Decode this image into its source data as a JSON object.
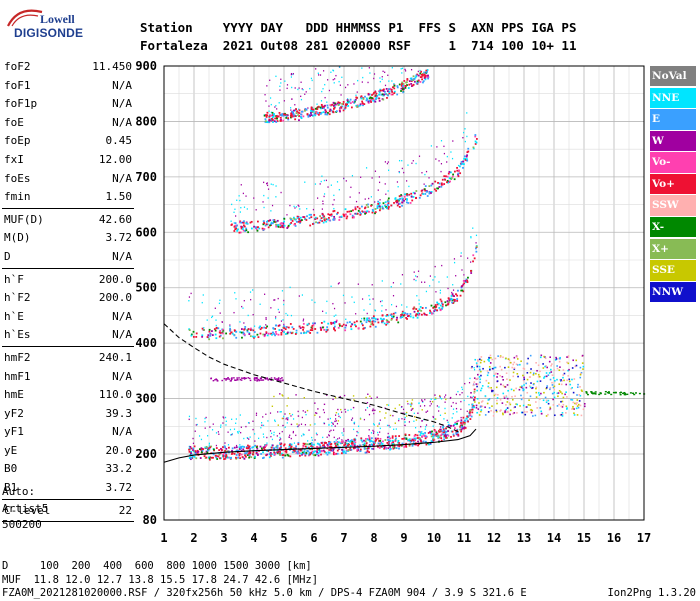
{
  "logo": {
    "line1": "Lowell",
    "line2": "DIGISONDE"
  },
  "header": {
    "line1": "Station    YYYY DAY   DDD HHMMSS P1  FFS S  AXN PPS IGA PS",
    "line2": "Fortaleza  2021 Out08 281 020000 RSF     1  714 100 10+ 11"
  },
  "params": {
    "group1": [
      {
        "k": "foF2",
        "v": "11.450"
      },
      {
        "k": "foF1",
        "v": "N/A"
      },
      {
        "k": "foF1p",
        "v": "N/A"
      },
      {
        "k": "foE",
        "v": "N/A"
      },
      {
        "k": "foEp",
        "v": "0.45"
      },
      {
        "k": "fxI",
        "v": "12.00"
      },
      {
        "k": "foEs",
        "v": "N/A"
      },
      {
        "k": "fmin",
        "v": "1.50"
      }
    ],
    "group2": [
      {
        "k": "MUF(D)",
        "v": "42.60"
      },
      {
        "k": "M(D)",
        "v": "3.72"
      },
      {
        "k": "D",
        "v": "N/A"
      }
    ],
    "group3": [
      {
        "k": "h`F",
        "v": "200.0"
      },
      {
        "k": "h`F2",
        "v": "200.0"
      },
      {
        "k": "h`E",
        "v": "N/A"
      },
      {
        "k": "h`Es",
        "v": "N/A"
      }
    ],
    "group4": [
      {
        "k": "hmF2",
        "v": "240.1"
      },
      {
        "k": "hmF1",
        "v": "N/A"
      },
      {
        "k": "hmE",
        "v": "110.0"
      },
      {
        "k": "yF2",
        "v": "39.3"
      },
      {
        "k": "yF1",
        "v": "N/A"
      },
      {
        "k": "yE",
        "v": "20.0"
      },
      {
        "k": "B0",
        "v": "33.2"
      },
      {
        "k": "B1",
        "v": "3.72"
      }
    ],
    "group5": [
      {
        "k": "C-level",
        "v": "22"
      }
    ]
  },
  "auto": {
    "line1": "Auto:",
    "line2": "Artist5",
    "line3": "500200"
  },
  "legend": [
    {
      "label": "NoVal",
      "color": "#808080"
    },
    {
      "label": "NNE",
      "color": "#00e5ff"
    },
    {
      "label": "E",
      "color": "#3aa0ff"
    },
    {
      "label": "W",
      "color": "#a000a0"
    },
    {
      "label": "Vo-",
      "color": "#ff40b0"
    },
    {
      "label": "Vo+",
      "color": "#ee1133"
    },
    {
      "label": "SSW",
      "color": "#ffb0b0"
    },
    {
      "label": "X-",
      "color": "#008800"
    },
    {
      "label": "X+",
      "color": "#88bb55"
    },
    {
      "label": "SSE",
      "color": "#c8c800"
    },
    {
      "label": "NNW",
      "color": "#1010cc"
    }
  ],
  "bottom": {
    "dist_line": "D     100  200  400  600  800 1000 1500 3000 [km]",
    "muf_line": "MUF  11.8 12.0 12.7 13.8 15.5 17.8 24.7 42.6 [MHz]",
    "file_line": "FZA0M_2021281020000.RSF / 320fx256h 50 kHz 5.0 km / DPS-4 FZA0M 904 / 3.9 S 321.6 E",
    "version": "Ion2Png 1.3.20"
  },
  "chart_data": {
    "type": "scatter",
    "title": "",
    "xlabel": "",
    "ylabel": "",
    "x_ticks": [
      "1",
      "2",
      "3",
      "4",
      "5",
      "6",
      "7",
      "8",
      "9",
      "10",
      "11",
      "12",
      "13",
      "14",
      "15",
      "16",
      "17"
    ],
    "y_ticks": [
      "80",
      "200",
      "300",
      "400",
      "500",
      "600",
      "700",
      "800",
      "900"
    ],
    "xlim": [
      1,
      17
    ],
    "ylim": [
      80,
      900
    ],
    "traces": [
      {
        "name": "F2 O-trace",
        "x": [
          1.8,
          2.5,
          3.5,
          4.5,
          5.5,
          6.5,
          7.5,
          8.5,
          9.5,
          10.2,
          10.8,
          11.1,
          11.3,
          11.4
        ],
        "y": [
          212,
          213,
          215,
          217,
          219,
          222,
          226,
          231,
          238,
          246,
          258,
          275,
          300,
          380
        ]
      },
      {
        "name": "F2 2nd hop",
        "x": [
          1.8,
          3,
          4,
          5,
          6,
          7,
          8,
          9,
          10,
          10.8,
          11.2,
          11.4
        ],
        "y": [
          425,
          426,
          428,
          432,
          436,
          441,
          448,
          458,
          472,
          495,
          540,
          585
        ]
      },
      {
        "name": "F2 3rd hop",
        "x": [
          3.2,
          4,
          5,
          6,
          7,
          8,
          9,
          10,
          10.8,
          11.4
        ],
        "y": [
          617,
          620,
          625,
          632,
          641,
          653,
          668,
          690,
          720,
          780
        ]
      },
      {
        "name": "F2 4th hop",
        "x": [
          4.3,
          5,
          6,
          7,
          8,
          9,
          9.8
        ],
        "y": [
          813,
          818,
          826,
          837,
          852,
          872,
          895
        ]
      }
    ],
    "model_curves": [
      {
        "name": "dashed profile",
        "x": [
          1,
          1.5,
          2,
          2.5,
          3,
          4,
          5,
          6,
          7,
          8,
          9,
          10,
          10.5,
          10.9
        ],
        "y": [
          435,
          410,
          392,
          375,
          362,
          343,
          328,
          313,
          300,
          288,
          272,
          258,
          248,
          238
        ]
      },
      {
        "name": "solid profile",
        "x": [
          1,
          1.5,
          2,
          3,
          4,
          5,
          6,
          7,
          8,
          9,
          10,
          10.8,
          11.2,
          11.4
        ],
        "y": [
          185,
          193,
          198,
          203,
          206,
          208,
          210,
          212,
          214,
          217,
          221,
          226,
          233,
          245
        ]
      }
    ]
  }
}
